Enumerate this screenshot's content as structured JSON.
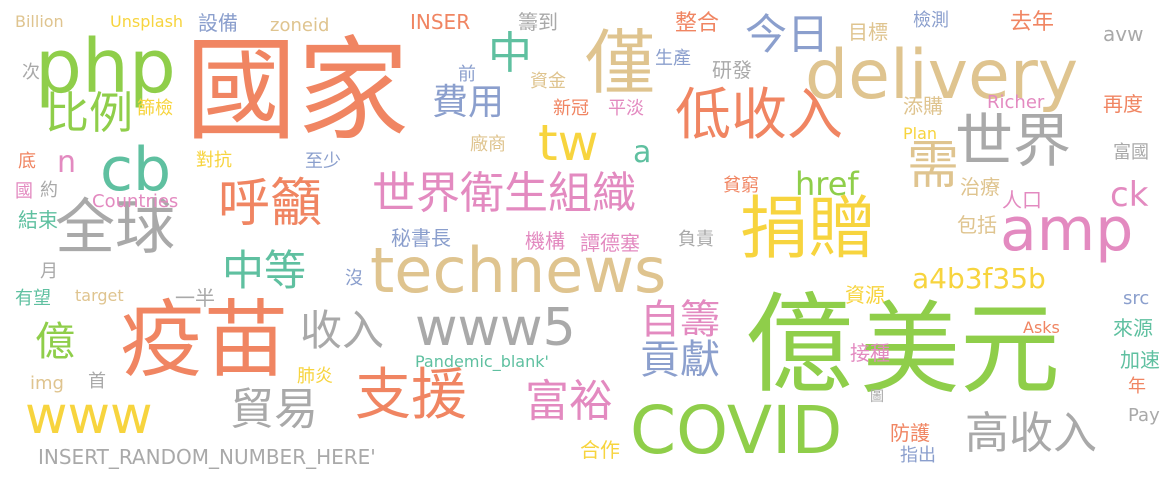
{
  "palette": {
    "orange": "#f08562",
    "green": "#8fce4a",
    "gray": "#a9a9a9",
    "tan": "#dfc48f",
    "pink": "#e38ac0",
    "blue": "#8b9fcd",
    "teal": "#5fc0a0",
    "yellow": "#f7d43e"
  },
  "words": [
    {
      "text": "國家",
      "color": "orange"
    },
    {
      "text": "億",
      "color": "green"
    },
    {
      "text": "美元",
      "color": "green"
    },
    {
      "text": "疫苗",
      "color": "orange"
    },
    {
      "text": "php",
      "color": "green"
    },
    {
      "text": "delivery",
      "color": "tan"
    },
    {
      "text": "僅",
      "color": "tan"
    },
    {
      "text": "technews",
      "color": "tan"
    },
    {
      "text": "COVID",
      "color": "green"
    },
    {
      "text": "捐贈",
      "color": "yellow"
    },
    {
      "text": "amp",
      "color": "pink"
    },
    {
      "text": "低收入",
      "color": "orange"
    },
    {
      "text": "世界",
      "color": "gray"
    },
    {
      "text": "全球",
      "color": "gray"
    },
    {
      "text": "cb",
      "color": "teal"
    },
    {
      "text": "呼籲",
      "color": "orange"
    },
    {
      "text": "世界衛生組織",
      "color": "pink"
    },
    {
      "text": "www5",
      "color": "gray"
    },
    {
      "text": "支援",
      "color": "orange"
    },
    {
      "text": "www",
      "color": "yellow"
    },
    {
      "text": "貿易",
      "color": "gray"
    },
    {
      "text": "高收入",
      "color": "gray"
    },
    {
      "text": "今日",
      "color": "blue"
    },
    {
      "text": "比例",
      "color": "green"
    },
    {
      "text": "收入",
      "color": "gray"
    },
    {
      "text": "富裕",
      "color": "pink"
    },
    {
      "text": "自籌",
      "color": "pink"
    },
    {
      "text": "貢獻",
      "color": "blue"
    },
    {
      "text": "中等",
      "color": "teal"
    },
    {
      "text": "tw",
      "color": "yellow"
    },
    {
      "text": "需",
      "color": "tan"
    },
    {
      "text": "費用",
      "color": "blue"
    },
    {
      "text": "a4b3f35b",
      "color": "yellow"
    },
    {
      "text": "href",
      "color": "green"
    },
    {
      "text": "ck",
      "color": "pink"
    },
    {
      "text": "中",
      "color": "teal"
    },
    {
      "text": "億",
      "color": "green"
    },
    {
      "text": "n",
      "color": "pink"
    },
    {
      "text": "a",
      "color": "teal"
    },
    {
      "text": "INSERT_RANDOM_NUMBER_HERE'",
      "color": "gray"
    },
    {
      "text": "Pandemic_blank'",
      "color": "teal"
    },
    {
      "text": "Billion",
      "color": "tan"
    },
    {
      "text": "Unsplash",
      "color": "yellow"
    },
    {
      "text": "設備",
      "color": "blue"
    },
    {
      "text": "zoneid",
      "color": "tan"
    },
    {
      "text": "INSER",
      "color": "orange"
    },
    {
      "text": "籌到",
      "color": "gray"
    },
    {
      "text": "整合",
      "color": "orange"
    },
    {
      "text": "目標",
      "color": "tan"
    },
    {
      "text": "檢測",
      "color": "blue"
    },
    {
      "text": "去年",
      "color": "orange"
    },
    {
      "text": "avw",
      "color": "gray"
    },
    {
      "text": "次",
      "color": "gray"
    },
    {
      "text": "前",
      "color": "blue"
    },
    {
      "text": "資金",
      "color": "tan"
    },
    {
      "text": "生產",
      "color": "blue"
    },
    {
      "text": "研發",
      "color": "gray"
    },
    {
      "text": "篩檢",
      "color": "yellow"
    },
    {
      "text": "新冠",
      "color": "orange"
    },
    {
      "text": "平淡",
      "color": "pink"
    },
    {
      "text": "添購",
      "color": "tan"
    },
    {
      "text": "Richer",
      "color": "pink"
    },
    {
      "text": "再度",
      "color": "orange"
    },
    {
      "text": "Plan",
      "color": "yellow"
    },
    {
      "text": "廠商",
      "color": "tan"
    },
    {
      "text": "富國",
      "color": "gray"
    },
    {
      "text": "底",
      "color": "orange"
    },
    {
      "text": "對抗",
      "color": "yellow"
    },
    {
      "text": "至少",
      "color": "blue"
    },
    {
      "text": "國",
      "color": "pink"
    },
    {
      "text": "約",
      "color": "gray"
    },
    {
      "text": "貧窮",
      "color": "orange"
    },
    {
      "text": "治療",
      "color": "tan"
    },
    {
      "text": "人口",
      "color": "pink"
    },
    {
      "text": "結束",
      "color": "teal"
    },
    {
      "text": "Countries",
      "color": "pink"
    },
    {
      "text": "秘書長",
      "color": "blue"
    },
    {
      "text": "機構",
      "color": "pink"
    },
    {
      "text": "譚德塞",
      "color": "pink"
    },
    {
      "text": "負責",
      "color": "gray"
    },
    {
      "text": "包括",
      "color": "tan"
    },
    {
      "text": "月",
      "color": "gray"
    },
    {
      "text": "沒",
      "color": "blue"
    },
    {
      "text": "有望",
      "color": "teal"
    },
    {
      "text": "target",
      "color": "tan"
    },
    {
      "text": "一半",
      "color": "gray"
    },
    {
      "text": "資源",
      "color": "yellow"
    },
    {
      "text": "src",
      "color": "blue"
    },
    {
      "text": "來源",
      "color": "teal"
    },
    {
      "text": "Asks",
      "color": "orange"
    },
    {
      "text": "接種",
      "color": "pink"
    },
    {
      "text": "加速",
      "color": "teal"
    },
    {
      "text": "img",
      "color": "tan"
    },
    {
      "text": "首",
      "color": "gray"
    },
    {
      "text": "肺炎",
      "color": "yellow"
    },
    {
      "text": "年",
      "color": "orange"
    },
    {
      "text": "圖",
      "color": "gray"
    },
    {
      "text": "Pay",
      "color": "gray"
    },
    {
      "text": "防護",
      "color": "orange"
    },
    {
      "text": "合作",
      "color": "yellow"
    },
    {
      "text": "指出",
      "color": "blue"
    }
  ]
}
